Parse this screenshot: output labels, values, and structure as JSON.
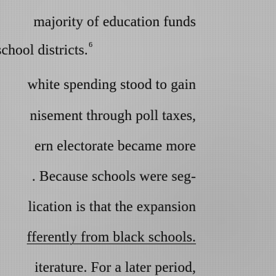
{
  "lines": [
    {
      "text": "majority of education funds"
    },
    {
      "text": "school districts.",
      "superscript": "6"
    },
    {
      "text": "white spending stood to gain"
    },
    {
      "text": "nisement through poll taxes,"
    },
    {
      "text": "ern electorate became more"
    },
    {
      "text": ". Because schools were seg-"
    },
    {
      "text": "lication is that the expansion"
    },
    {
      "text": "fferently from black schools."
    },
    {
      "text": "iterature.  For a later period,"
    }
  ]
}
